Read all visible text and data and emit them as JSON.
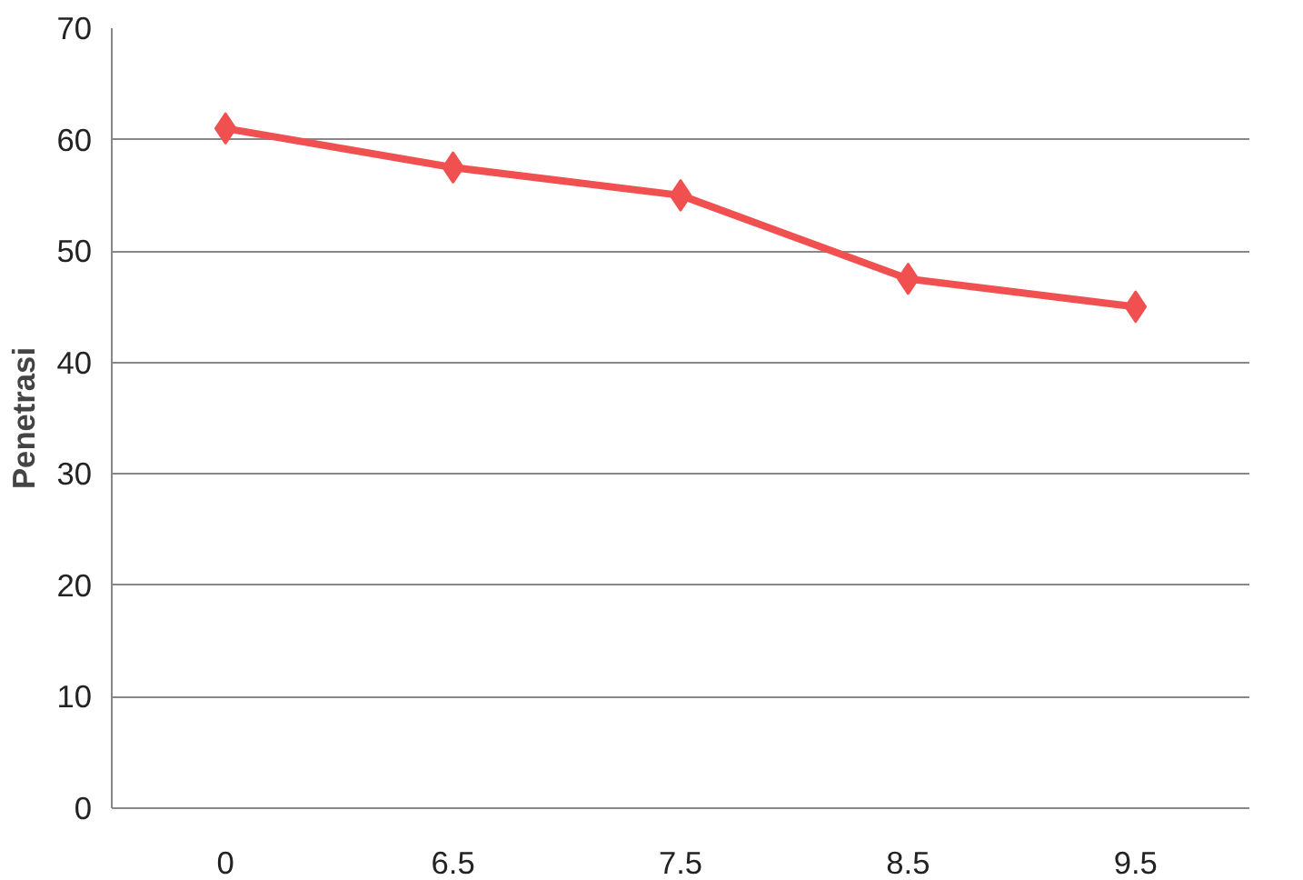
{
  "chart_data": {
    "type": "line",
    "ylabel": "Penetrasi",
    "categories": [
      "0",
      "6.5",
      "7.5",
      "8.5",
      "9.5"
    ],
    "series": [
      {
        "color": "#f0504f",
        "values": [
          61,
          57.5,
          55,
          47.5,
          45
        ]
      }
    ],
    "ylim": [
      0,
      70
    ],
    "yticks": [
      0,
      10,
      20,
      30,
      40,
      50,
      60,
      70
    ],
    "grid": "y",
    "marker": "diamond",
    "line_style": "solid"
  }
}
